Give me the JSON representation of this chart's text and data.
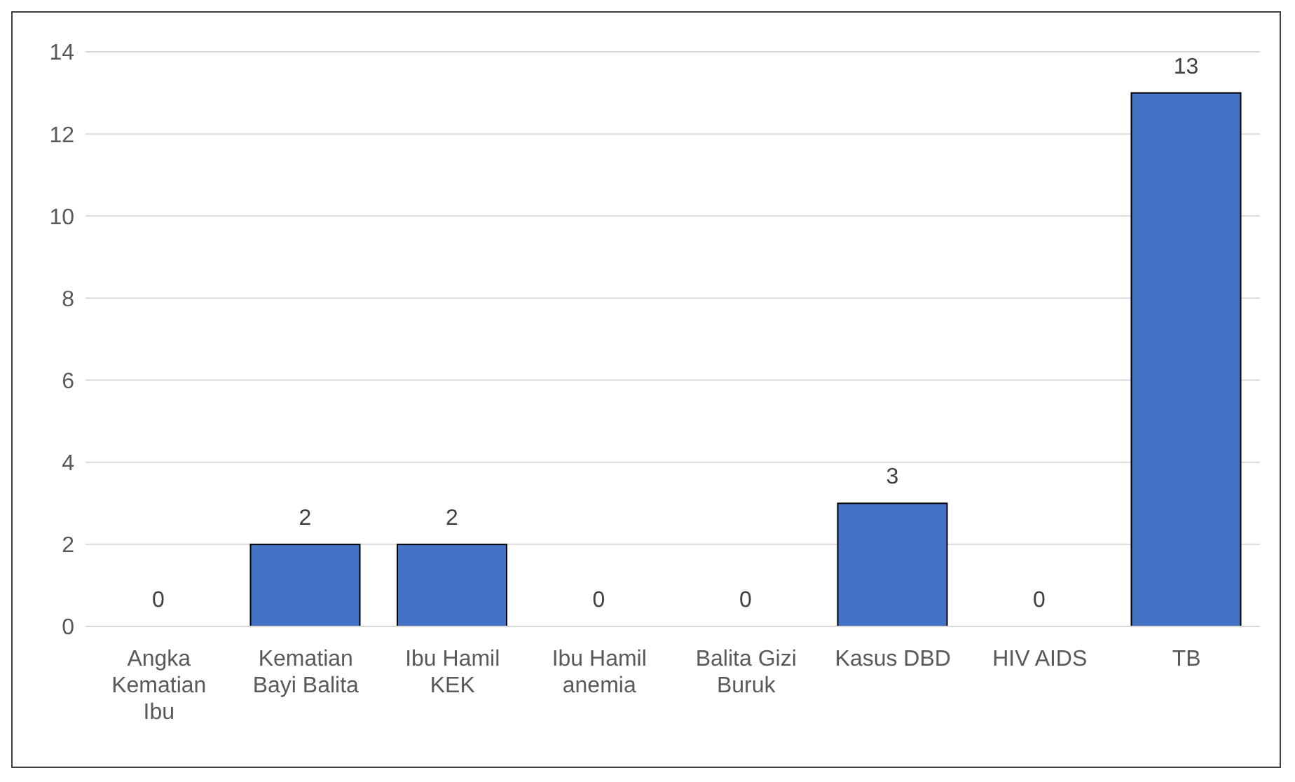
{
  "chart_data": {
    "type": "bar",
    "categories": [
      "Angka Kematian Ibu",
      "Kematian Bayi Balita",
      "Ibu Hamil KEK",
      "Ibu Hamil anemia",
      "Balita Gizi Buruk",
      "Kasus DBD",
      "HIV AIDS",
      "TB"
    ],
    "values": [
      0,
      2,
      2,
      0,
      0,
      3,
      0,
      13
    ],
    "color": "#4472c4",
    "ylim": [
      0,
      14
    ],
    "yticks": [
      0,
      2,
      4,
      6,
      8,
      10,
      12,
      14
    ],
    "grid": "y",
    "data_labels": true,
    "legend": false
  }
}
